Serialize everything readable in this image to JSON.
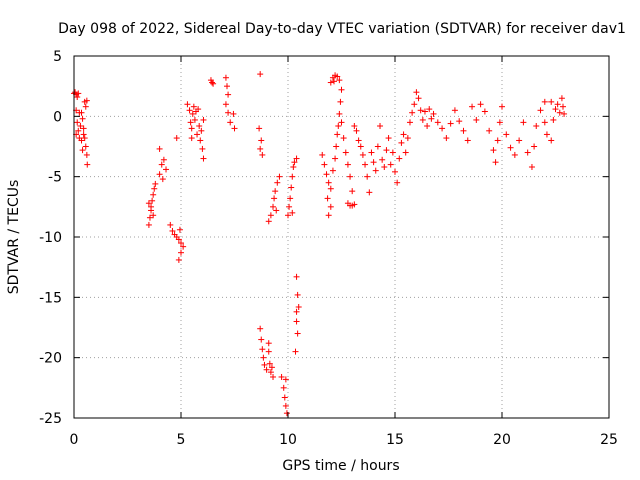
{
  "chart_data": {
    "type": "scatter",
    "title": "Day 098 of 2022, Sidereal Day-to-day VTEC variation (SDTVAR) for receiver dav1",
    "xlabel": "GPS time / hours",
    "ylabel": "SDTVAR / TECUs",
    "xlim": [
      0,
      25
    ],
    "ylim": [
      -25,
      5
    ],
    "xticks": [
      "0",
      "5",
      "10",
      "15",
      "20",
      "25"
    ],
    "yticks": [
      "5",
      "0",
      "-5",
      "-10",
      "-15",
      "-20",
      "-25"
    ],
    "grid": true,
    "marker": "+",
    "color": "#ff0000",
    "series": [
      {
        "name": "SDTVAR",
        "points": [
          [
            0.0,
            1.9
          ],
          [
            0.05,
            2.0
          ],
          [
            0.1,
            1.8
          ],
          [
            0.15,
            1.6
          ],
          [
            0.2,
            1.9
          ],
          [
            0.1,
            0.5
          ],
          [
            0.15,
            -0.5
          ],
          [
            0.2,
            -1.2
          ],
          [
            0.25,
            -1.8
          ],
          [
            0.1,
            -1.5
          ],
          [
            0.3,
            -0.8
          ],
          [
            0.35,
            0.3
          ],
          [
            0.4,
            -0.2
          ],
          [
            0.45,
            -1.0
          ],
          [
            0.5,
            -1.8
          ],
          [
            0.55,
            -2.5
          ],
          [
            0.6,
            -3.2
          ],
          [
            0.62,
            -4.0
          ],
          [
            0.5,
            1.2
          ],
          [
            0.6,
            1.3
          ],
          [
            0.35,
            -2.0
          ],
          [
            0.45,
            -1.5
          ],
          [
            0.55,
            0.8
          ],
          [
            0.25,
            0.3
          ],
          [
            0.4,
            -2.8
          ],
          [
            3.5,
            -9.0
          ],
          [
            3.55,
            -8.4
          ],
          [
            3.6,
            -7.8
          ],
          [
            3.65,
            -7.0
          ],
          [
            3.7,
            -6.5
          ],
          [
            3.75,
            -6.0
          ],
          [
            3.8,
            -5.6
          ],
          [
            3.6,
            -7.5
          ],
          [
            3.7,
            -8.2
          ],
          [
            3.5,
            -7.2
          ],
          [
            4.0,
            -4.8
          ],
          [
            4.1,
            -4.0
          ],
          [
            4.2,
            -3.6
          ],
          [
            4.3,
            -4.4
          ],
          [
            4.15,
            -5.2
          ],
          [
            4.0,
            -2.7
          ],
          [
            4.5,
            -9.0
          ],
          [
            4.6,
            -9.5
          ],
          [
            4.7,
            -9.8
          ],
          [
            4.8,
            -10.0
          ],
          [
            4.9,
            -10.2
          ],
          [
            5.0,
            -10.5
          ],
          [
            5.1,
            -10.8
          ],
          [
            5.0,
            -11.3
          ],
          [
            4.9,
            -11.9
          ],
          [
            4.95,
            -9.4
          ],
          [
            4.8,
            -1.8
          ],
          [
            5.3,
            1.0
          ],
          [
            5.4,
            0.5
          ],
          [
            5.45,
            -0.5
          ],
          [
            5.5,
            -1.0
          ],
          [
            5.55,
            0.2
          ],
          [
            5.6,
            0.8
          ],
          [
            5.65,
            -0.3
          ],
          [
            5.7,
            0.4
          ],
          [
            5.75,
            -1.5
          ],
          [
            5.8,
            0.6
          ],
          [
            5.85,
            -0.8
          ],
          [
            5.9,
            -2.0
          ],
          [
            6.0,
            -2.7
          ],
          [
            6.05,
            -3.5
          ],
          [
            5.5,
            -1.8
          ],
          [
            5.95,
            -1.2
          ],
          [
            6.05,
            -0.3
          ],
          [
            6.4,
            3.0
          ],
          [
            6.5,
            2.7
          ],
          [
            6.45,
            2.8
          ],
          [
            7.1,
            3.2
          ],
          [
            7.15,
            2.5
          ],
          [
            7.2,
            1.8
          ],
          [
            7.1,
            1.0
          ],
          [
            7.2,
            0.3
          ],
          [
            7.3,
            -0.5
          ],
          [
            7.5,
            -1.0
          ],
          [
            7.45,
            0.2
          ],
          [
            8.7,
            3.5
          ],
          [
            8.65,
            -1.0
          ],
          [
            8.7,
            -2.7
          ],
          [
            8.8,
            -3.2
          ],
          [
            8.75,
            -2.0
          ],
          [
            8.7,
            -17.6
          ],
          [
            8.75,
            -18.5
          ],
          [
            8.8,
            -19.3
          ],
          [
            8.85,
            -20.0
          ],
          [
            8.9,
            -20.6
          ],
          [
            9.0,
            -21.0
          ],
          [
            9.1,
            -19.5
          ],
          [
            9.15,
            -20.5
          ],
          [
            9.2,
            -21.2
          ],
          [
            9.3,
            -21.6
          ],
          [
            9.1,
            -18.8
          ],
          [
            9.25,
            -20.8
          ],
          [
            9.1,
            -8.7
          ],
          [
            9.2,
            -8.2
          ],
          [
            9.3,
            -7.5
          ],
          [
            9.35,
            -6.8
          ],
          [
            9.4,
            -6.2
          ],
          [
            9.5,
            -5.5
          ],
          [
            9.6,
            -5.0
          ],
          [
            9.45,
            -7.8
          ],
          [
            9.7,
            -21.6
          ],
          [
            9.8,
            -22.5
          ],
          [
            9.85,
            -23.3
          ],
          [
            9.9,
            -24.0
          ],
          [
            9.95,
            -24.6
          ],
          [
            9.9,
            -21.8
          ],
          [
            10.0,
            -8.2
          ],
          [
            10.05,
            -7.5
          ],
          [
            10.1,
            -6.8
          ],
          [
            10.15,
            -5.9
          ],
          [
            10.2,
            -5.0
          ],
          [
            10.25,
            -4.2
          ],
          [
            10.3,
            -3.8
          ],
          [
            10.4,
            -3.5
          ],
          [
            10.2,
            -8.0
          ],
          [
            10.4,
            -13.3
          ],
          [
            10.45,
            -14.8
          ],
          [
            10.5,
            -15.8
          ],
          [
            10.4,
            -17.0
          ],
          [
            10.45,
            -18.0
          ],
          [
            10.35,
            -19.5
          ],
          [
            10.4,
            -16.2
          ],
          [
            11.6,
            -3.2
          ],
          [
            11.7,
            -4.0
          ],
          [
            11.8,
            -4.8
          ],
          [
            11.9,
            -5.5
          ],
          [
            12.0,
            -6.0
          ],
          [
            11.85,
            -6.8
          ],
          [
            12.0,
            -7.5
          ],
          [
            11.9,
            -8.2
          ],
          [
            12.1,
            -4.5
          ],
          [
            12.2,
            -3.5
          ],
          [
            12.25,
            -2.5
          ],
          [
            12.3,
            -1.5
          ],
          [
            12.35,
            -0.8
          ],
          [
            12.4,
            0.2
          ],
          [
            12.45,
            1.2
          ],
          [
            12.5,
            2.2
          ],
          [
            12.0,
            2.8
          ],
          [
            12.1,
            3.2
          ],
          [
            12.2,
            3.4
          ],
          [
            12.3,
            3.3
          ],
          [
            12.4,
            3.0
          ],
          [
            12.15,
            2.9
          ],
          [
            12.5,
            -0.5
          ],
          [
            12.6,
            -1.8
          ],
          [
            12.7,
            -3.0
          ],
          [
            12.8,
            -4.0
          ],
          [
            12.9,
            -5.0
          ],
          [
            13.0,
            -6.2
          ],
          [
            12.8,
            -7.2
          ],
          [
            12.9,
            -7.4
          ],
          [
            13.0,
            -7.4
          ],
          [
            13.1,
            -7.3
          ],
          [
            13.2,
            -1.2
          ],
          [
            13.3,
            -2.0
          ],
          [
            13.4,
            -2.5
          ],
          [
            13.5,
            -3.2
          ],
          [
            13.1,
            -0.8
          ],
          [
            13.6,
            -4.0
          ],
          [
            13.7,
            -5.0
          ],
          [
            13.8,
            -6.3
          ],
          [
            13.9,
            -3.0
          ],
          [
            14.0,
            -3.8
          ],
          [
            14.1,
            -4.5
          ],
          [
            14.2,
            -2.5
          ],
          [
            14.3,
            -0.8
          ],
          [
            14.4,
            -3.6
          ],
          [
            14.5,
            -4.2
          ],
          [
            14.6,
            -2.8
          ],
          [
            14.7,
            -1.8
          ],
          [
            14.8,
            -4.0
          ],
          [
            14.9,
            -3.0
          ],
          [
            15.0,
            -4.6
          ],
          [
            15.1,
            -5.5
          ],
          [
            15.2,
            -3.5
          ],
          [
            15.3,
            -2.2
          ],
          [
            15.4,
            -1.5
          ],
          [
            15.5,
            -3.0
          ],
          [
            15.6,
            -1.8
          ],
          [
            15.7,
            -0.5
          ],
          [
            15.8,
            0.3
          ],
          [
            15.9,
            1.0
          ],
          [
            16.0,
            2.0
          ],
          [
            16.1,
            1.5
          ],
          [
            16.2,
            0.5
          ],
          [
            16.3,
            -0.3
          ],
          [
            16.4,
            0.4
          ],
          [
            16.5,
            -0.8
          ],
          [
            16.6,
            0.6
          ],
          [
            16.7,
            -0.2
          ],
          [
            16.8,
            0.2
          ],
          [
            17.0,
            -0.5
          ],
          [
            17.2,
            -1.0
          ],
          [
            17.4,
            -1.8
          ],
          [
            17.6,
            -0.6
          ],
          [
            17.8,
            0.5
          ],
          [
            18.0,
            -0.4
          ],
          [
            18.2,
            -1.2
          ],
          [
            18.4,
            -2.0
          ],
          [
            18.6,
            0.8
          ],
          [
            18.8,
            -0.3
          ],
          [
            19.0,
            1.0
          ],
          [
            19.2,
            0.4
          ],
          [
            19.4,
            -1.2
          ],
          [
            19.6,
            -2.8
          ],
          [
            19.7,
            -3.8
          ],
          [
            19.8,
            -2.0
          ],
          [
            19.9,
            -0.5
          ],
          [
            20.0,
            0.8
          ],
          [
            20.2,
            -1.5
          ],
          [
            20.4,
            -2.6
          ],
          [
            20.6,
            -3.2
          ],
          [
            20.8,
            -2.0
          ],
          [
            21.0,
            -0.5
          ],
          [
            21.2,
            -3.0
          ],
          [
            21.4,
            -4.2
          ],
          [
            21.5,
            -2.5
          ],
          [
            21.6,
            -0.8
          ],
          [
            21.8,
            0.5
          ],
          [
            22.0,
            1.2
          ],
          [
            22.1,
            -1.5
          ],
          [
            22.3,
            -2.0
          ],
          [
            22.4,
            -0.3
          ],
          [
            22.5,
            0.6
          ],
          [
            22.6,
            1.0
          ],
          [
            22.7,
            0.3
          ],
          [
            22.8,
            1.5
          ],
          [
            22.85,
            0.8
          ],
          [
            22.9,
            0.2
          ],
          [
            22.3,
            1.2
          ],
          [
            22.0,
            -0.5
          ]
        ]
      }
    ]
  }
}
